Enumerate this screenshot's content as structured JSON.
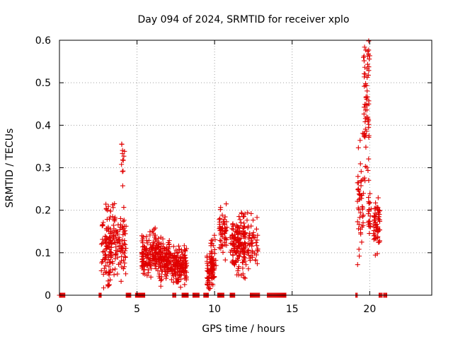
{
  "chart_data": {
    "type": "scatter",
    "title": "Day 094 of 2024, SRMTID for receiver xplo",
    "xlabel": "GPS time / hours",
    "ylabel": "SRMTID / TECUs",
    "xlim": [
      0,
      24
    ],
    "ylim": [
      0,
      0.6
    ],
    "xticks": [
      0,
      5,
      10,
      15,
      20
    ],
    "yticks": [
      0,
      0.1,
      0.2,
      0.3,
      0.4,
      0.5,
      0.6
    ],
    "ytick_labels": [
      "0",
      "0.1",
      "0.2",
      "0.3",
      "0.4",
      "0.5",
      "0.6"
    ],
    "grid": true,
    "marker": "+",
    "color": "#e00000",
    "clusters": [
      {
        "x_range": [
          2.6,
          2.7
        ],
        "count": 4,
        "y_center": 0.0,
        "y_spread": 0.0
      },
      {
        "x_range": [
          2.7,
          3.3
        ],
        "count": 70,
        "y_center": 0.11,
        "y_spread": 0.04
      },
      {
        "x_range": [
          3.2,
          4.3
        ],
        "count": 110,
        "y_center": 0.12,
        "y_spread": 0.04
      },
      {
        "x_range": [
          3.0,
          3.6
        ],
        "count": 8,
        "y_center": 0.2,
        "y_spread": 0.01
      },
      {
        "x_range": [
          3.1,
          3.4
        ],
        "count": 5,
        "y_center": 0.03,
        "y_spread": 0.006
      },
      {
        "x_range": [
          4.0,
          4.2
        ],
        "count": 12,
        "y_center": 0.31,
        "y_spread": 0.025
      },
      {
        "x_range": [
          5.3,
          6.2
        ],
        "count": 120,
        "y_center": 0.1,
        "y_spread": 0.025
      },
      {
        "x_range": [
          6.2,
          7.2
        ],
        "count": 150,
        "y_center": 0.09,
        "y_spread": 0.025
      },
      {
        "x_range": [
          7.2,
          8.2
        ],
        "count": 140,
        "y_center": 0.07,
        "y_spread": 0.02
      },
      {
        "x_range": [
          9.5,
          10.0
        ],
        "count": 70,
        "y_center": 0.06,
        "y_spread": 0.02
      },
      {
        "x_range": [
          9.7,
          10.1
        ],
        "count": 25,
        "y_center": 0.1,
        "y_spread": 0.02
      },
      {
        "x_range": [
          10.3,
          10.8
        ],
        "count": 55,
        "y_center": 0.15,
        "y_spread": 0.03
      },
      {
        "x_range": [
          11.0,
          12.0
        ],
        "count": 140,
        "y_center": 0.12,
        "y_spread": 0.035
      },
      {
        "x_range": [
          11.8,
          12.8
        ],
        "count": 70,
        "y_center": 0.12,
        "y_spread": 0.03
      },
      {
        "x_range": [
          19.2,
          19.6
        ],
        "count": 50,
        "y_center": 0.22,
        "y_spread": 0.06
      },
      {
        "x_range": [
          19.6,
          19.95
        ],
        "count": 60,
        "y_center": 0.43,
        "y_spread": 0.09
      },
      {
        "x_range": [
          19.7,
          20.0
        ],
        "count": 8,
        "y_center": 0.57,
        "y_spread": 0.015
      },
      {
        "x_range": [
          19.9,
          20.1
        ],
        "count": 20,
        "y_center": 0.19,
        "y_spread": 0.025
      },
      {
        "x_range": [
          20.25,
          20.65
        ],
        "count": 60,
        "y_center": 0.17,
        "y_spread": 0.03
      }
    ],
    "zero_x_ranges": [
      [
        0.0,
        0.35
      ],
      [
        2.55,
        2.65
      ],
      [
        4.3,
        4.6
      ],
      [
        4.9,
        5.5
      ],
      [
        7.3,
        7.5
      ],
      [
        7.9,
        8.3
      ],
      [
        8.6,
        9.0
      ],
      [
        9.3,
        9.6
      ],
      [
        10.2,
        10.6
      ],
      [
        11.0,
        11.3
      ],
      [
        12.3,
        12.9
      ],
      [
        13.4,
        14.6
      ],
      [
        19.1,
        19.2
      ],
      [
        20.6,
        20.8
      ],
      [
        20.9,
        21.1
      ]
    ]
  }
}
